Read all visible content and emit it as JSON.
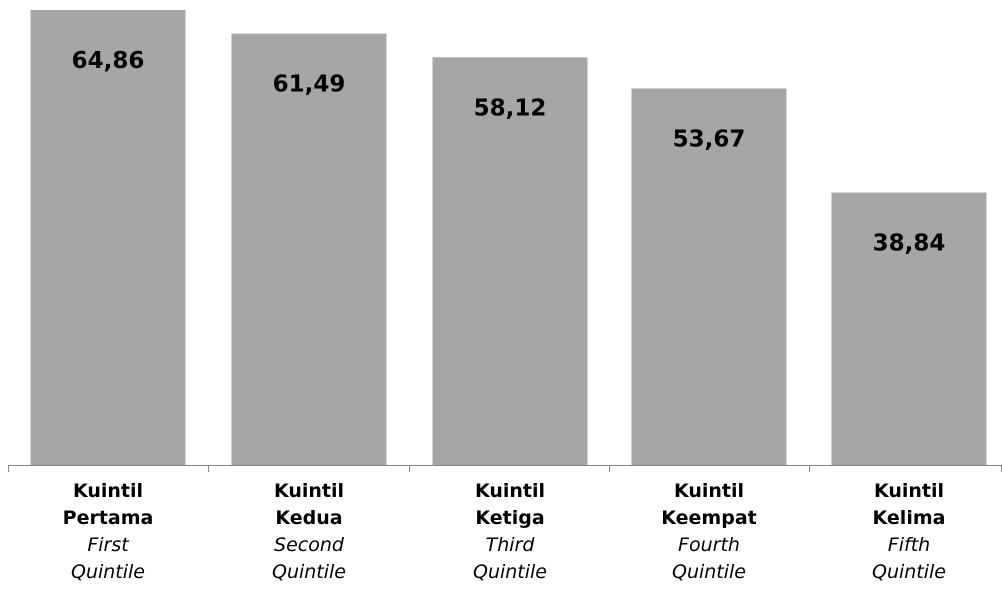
{
  "chart_data": {
    "type": "bar",
    "categories": [
      "Kuintil Pertama",
      "Kuintil Kedua",
      "Kuintil Ketiga",
      "Kuintil Keempat",
      "Kuintil Kelima"
    ],
    "categories_en": [
      "First Quintile",
      "Second Quintile",
      "Third Quintile",
      "Fourth Quintile",
      "Fifth Quintile"
    ],
    "values": [
      64.86,
      61.49,
      58.12,
      53.67,
      38.84
    ],
    "value_labels": [
      "64,86",
      "61,49",
      "58,12",
      "53,67",
      "38,84"
    ],
    "color": "#a6a6a6"
  }
}
